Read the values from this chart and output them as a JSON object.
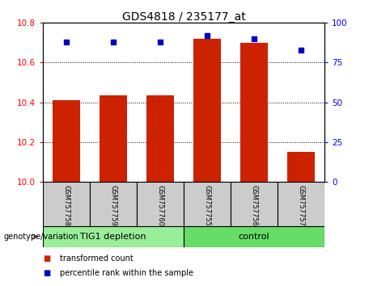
{
  "title": "GDS4818 / 235177_at",
  "categories": [
    "GSM757758",
    "GSM757759",
    "GSM757760",
    "GSM757755",
    "GSM757756",
    "GSM757757"
  ],
  "bar_values": [
    10.41,
    10.435,
    10.435,
    10.72,
    10.7,
    10.15
  ],
  "percentile_values": [
    88,
    88,
    88,
    92,
    90,
    83
  ],
  "bar_color": "#cc2200",
  "dot_color": "#0000cc",
  "ylim_left": [
    10,
    10.8
  ],
  "ylim_right": [
    0,
    100
  ],
  "yticks_left": [
    10,
    10.2,
    10.4,
    10.6,
    10.8
  ],
  "yticks_right": [
    0,
    25,
    50,
    75,
    100
  ],
  "group1_label": "TIG1 depletion",
  "group2_label": "control",
  "group1_color": "#99ee99",
  "group2_color": "#66dd66",
  "group1_indices": [
    0,
    1,
    2
  ],
  "group2_indices": [
    3,
    4,
    5
  ],
  "legend_red_label": "transformed count",
  "legend_blue_label": "percentile rank within the sample",
  "genotype_label": "genotype/variation",
  "bar_width": 0.6,
  "base_value": 10,
  "cell_bg": "#cccccc",
  "cell_edge": "#000000"
}
